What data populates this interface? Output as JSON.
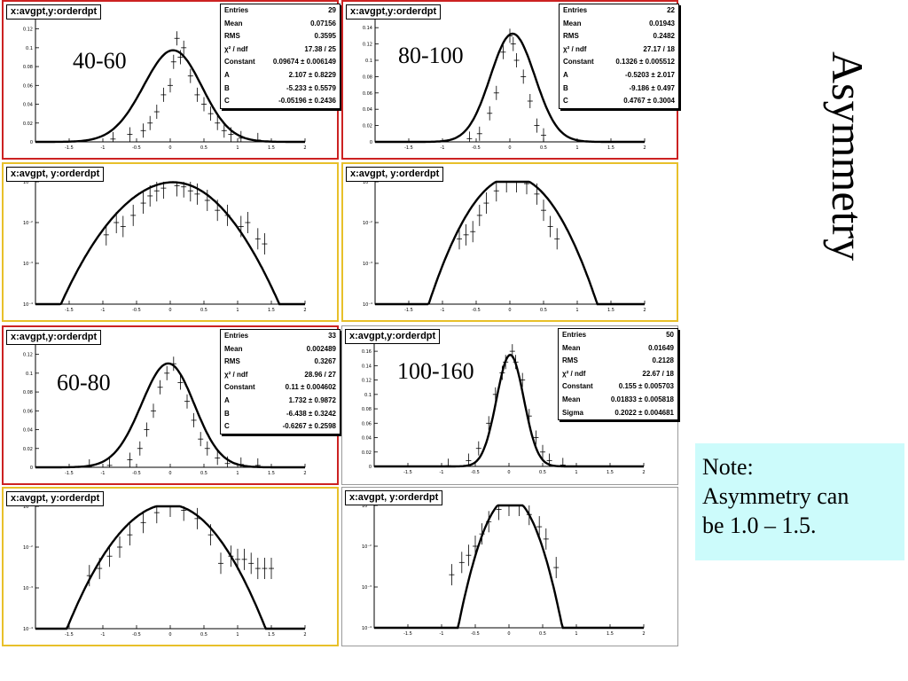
{
  "side_title": "Asymmetry",
  "note": {
    "line1": "Note:",
    "line2": "Asymmetry can",
    "line3": "be 1.0 – 1.5."
  },
  "colors": {
    "red_frame": "#cc2222",
    "yellow_frame": "#e8c02a",
    "note_bg": "#ccfbfb"
  },
  "chart_data": [
    {
      "id": "p1",
      "type": "scatter",
      "histogram_title": "x:avgpt,y:orderdpt",
      "bin_label": "40-60",
      "log_y": false,
      "xlim": [
        -2,
        2
      ],
      "ylim": [
        0,
        0.13
      ],
      "x_ticks": [
        "-1.5",
        "-1",
        "-0.5",
        "0",
        "0.5",
        "1",
        "1.5",
        "2"
      ],
      "y_ticks": [
        "0",
        "0.02",
        "0.04",
        "0.06",
        "0.08",
        "0.1",
        "0.12"
      ],
      "stats": [
        {
          "k": "Entries",
          "v": "29"
        },
        {
          "k": "Mean",
          "v": "0.07156"
        },
        {
          "k": "RMS",
          "v": "0.3595"
        },
        {
          "k": "χ² / ndf",
          "v": "17.38 / 25"
        },
        {
          "k": "Constant",
          "v": "0.09674 ± 0.006149"
        },
        {
          "k": "A",
          "v": "2.107 ± 0.8229"
        },
        {
          "k": "B",
          "v": "-5.233 ± 0.5579"
        },
        {
          "k": "C",
          "v": "-0.05196 ± 0.2436"
        }
      ],
      "fit": {
        "model": "asym",
        "constant": 0.09674,
        "A": 2.107,
        "B": -5.233,
        "C": -0.05196
      },
      "points": [
        [
          -0.85,
          0.003
        ],
        [
          -0.6,
          0.008
        ],
        [
          -0.4,
          0.012
        ],
        [
          -0.3,
          0.02
        ],
        [
          -0.2,
          0.032
        ],
        [
          -0.1,
          0.05
        ],
        [
          0,
          0.06
        ],
        [
          0.05,
          0.085
        ],
        [
          0.1,
          0.11
        ],
        [
          0.15,
          0.09
        ],
        [
          0.2,
          0.1
        ],
        [
          0.3,
          0.07
        ],
        [
          0.4,
          0.05
        ],
        [
          0.5,
          0.04
        ],
        [
          0.6,
          0.03
        ],
        [
          0.7,
          0.02
        ],
        [
          0.8,
          0.012
        ],
        [
          0.9,
          0.008
        ],
        [
          1.05,
          0.004
        ],
        [
          1.3,
          0.002
        ]
      ]
    },
    {
      "id": "p2",
      "type": "scatter",
      "histogram_title": "x:avgpt,y:orderdpt",
      "bin_label": "80-100",
      "log_y": false,
      "xlim": [
        -2,
        2
      ],
      "ylim": [
        0,
        0.15
      ],
      "x_ticks": [
        "-1.5",
        "-1",
        "-0.5",
        "0",
        "0.5",
        "1",
        "1.5",
        "2"
      ],
      "y_ticks": [
        "0",
        "0.02",
        "0.04",
        "0.06",
        "0.08",
        "0.1",
        "0.12",
        "0.14"
      ],
      "stats": [
        {
          "k": "Entries",
          "v": "22"
        },
        {
          "k": "Mean",
          "v": "0.01943"
        },
        {
          "k": "RMS",
          "v": "0.2482"
        },
        {
          "k": "χ² / ndf",
          "v": "27.17 / 18"
        },
        {
          "k": "Constant",
          "v": "0.1326 ± 0.005512"
        },
        {
          "k": "A",
          "v": "-0.5203 ± 2.017"
        },
        {
          "k": "B",
          "v": "-9.186 ± 0.497"
        },
        {
          "k": "C",
          "v": "0.4767 ± 0.3004"
        }
      ],
      "fit": {
        "model": "asym",
        "constant": 0.1326,
        "A": -0.5203,
        "B": -9.186,
        "C": 0.4767
      },
      "points": [
        [
          -0.6,
          0.004
        ],
        [
          -0.45,
          0.01
        ],
        [
          -0.3,
          0.035
        ],
        [
          -0.2,
          0.06
        ],
        [
          -0.1,
          0.11
        ],
        [
          0,
          0.13
        ],
        [
          0.05,
          0.12
        ],
        [
          0.1,
          0.1
        ],
        [
          0.2,
          0.08
        ],
        [
          0.3,
          0.05
        ],
        [
          0.4,
          0.02
        ],
        [
          0.5,
          0.008
        ]
      ]
    },
    {
      "id": "p3",
      "type": "scatter",
      "histogram_title": "x:avgpt, y:orderdpt",
      "log_y": true,
      "xlim": [
        -2,
        2
      ],
      "ylim_log": [
        -4,
        -1
      ],
      "x_ticks": [
        "-1.5",
        "-1",
        "-0.5",
        "0",
        "0.5",
        "1",
        "1.5",
        "2"
      ],
      "y_ticks": [
        "10⁻⁴",
        "10⁻³",
        "10⁻²",
        "10⁻¹"
      ],
      "fit": {
        "model": "asym",
        "constant": 0.09674,
        "A": 2.107,
        "B": -5.233,
        "C": -0.05196
      },
      "points": [
        [
          -0.95,
          0.005
        ],
        [
          -0.8,
          0.01
        ],
        [
          -0.7,
          0.008
        ],
        [
          -0.55,
          0.015
        ],
        [
          -0.4,
          0.03
        ],
        [
          -0.3,
          0.045
        ],
        [
          -0.2,
          0.06
        ],
        [
          -0.1,
          0.07
        ],
        [
          0.1,
          0.08
        ],
        [
          0.2,
          0.075
        ],
        [
          0.3,
          0.06
        ],
        [
          0.4,
          0.05
        ],
        [
          0.55,
          0.035
        ],
        [
          0.7,
          0.02
        ],
        [
          0.85,
          0.015
        ],
        [
          1.05,
          0.008
        ],
        [
          1.15,
          0.01
        ],
        [
          1.3,
          0.004
        ],
        [
          1.4,
          0.003
        ]
      ]
    },
    {
      "id": "p4",
      "type": "scatter",
      "histogram_title": "x:avgpt, y:orderdpt",
      "log_y": true,
      "xlim": [
        -2,
        2
      ],
      "ylim_log": [
        -4,
        -1
      ],
      "x_ticks": [
        "-1.5",
        "-1",
        "-0.5",
        "0",
        "0.5",
        "1",
        "1.5",
        "2"
      ],
      "y_ticks": [
        "10⁻⁴",
        "10⁻³",
        "10⁻²",
        "10⁻¹"
      ],
      "fit": {
        "model": "asym",
        "constant": 0.1326,
        "A": -0.5203,
        "B": -9.186,
        "C": 0.4767
      },
      "points": [
        [
          -0.75,
          0.004
        ],
        [
          -0.65,
          0.005
        ],
        [
          -0.55,
          0.006
        ],
        [
          -0.45,
          0.015
        ],
        [
          -0.35,
          0.03
        ],
        [
          -0.2,
          0.06
        ],
        [
          -0.05,
          0.1
        ],
        [
          0.1,
          0.12
        ],
        [
          0.25,
          0.09
        ],
        [
          0.4,
          0.05
        ],
        [
          0.5,
          0.02
        ],
        [
          0.6,
          0.008
        ],
        [
          0.7,
          0.004
        ]
      ]
    },
    {
      "id": "p5",
      "type": "scatter",
      "histogram_title": "x:avgpt,y:orderdpt",
      "bin_label": "60-80",
      "log_y": false,
      "xlim": [
        -2,
        2
      ],
      "ylim": [
        0,
        0.13
      ],
      "x_ticks": [
        "-1.5",
        "-1",
        "-0.5",
        "0",
        "0.5",
        "1",
        "1.5",
        "2"
      ],
      "y_ticks": [
        "0",
        "0.02",
        "0.04",
        "0.06",
        "0.08",
        "0.1",
        "0.12"
      ],
      "stats": [
        {
          "k": "Entries",
          "v": "33"
        },
        {
          "k": "Mean",
          "v": "0.002489"
        },
        {
          "k": "RMS",
          "v": "0.3267"
        },
        {
          "k": "χ² / ndf",
          "v": "28.96 / 27"
        },
        {
          "k": "Constant",
          "v": "0.11 ± 0.004602"
        },
        {
          "k": "A",
          "v": "1.732 ± 0.9872"
        },
        {
          "k": "B",
          "v": "-6.438 ± 0.3242"
        },
        {
          "k": "C",
          "v": "-0.6267 ± 0.2598"
        }
      ],
      "fit": {
        "model": "asym",
        "constant": 0.11,
        "A": 1.732,
        "B": -6.438,
        "C": -0.6267
      },
      "points": [
        [
          -1.2,
          0.001
        ],
        [
          -0.9,
          0.002
        ],
        [
          -0.6,
          0.008
        ],
        [
          -0.45,
          0.02
        ],
        [
          -0.35,
          0.04
        ],
        [
          -0.25,
          0.06
        ],
        [
          -0.15,
          0.085
        ],
        [
          -0.05,
          0.1
        ],
        [
          0.05,
          0.11
        ],
        [
          0.15,
          0.09
        ],
        [
          0.25,
          0.07
        ],
        [
          0.35,
          0.05
        ],
        [
          0.45,
          0.03
        ],
        [
          0.55,
          0.02
        ],
        [
          0.7,
          0.01
        ],
        [
          0.85,
          0.004
        ],
        [
          1.05,
          0.003
        ],
        [
          1.3,
          0.002
        ]
      ]
    },
    {
      "id": "p6",
      "type": "scatter",
      "histogram_title": "x:avgpt,y:orderdpt",
      "bin_label": "100-160",
      "log_y": false,
      "xlim": [
        -2,
        2
      ],
      "ylim": [
        0,
        0.17
      ],
      "x_ticks": [
        "-1.5",
        "-1",
        "-0.5",
        "0",
        "0.5",
        "1",
        "1.5",
        "2"
      ],
      "y_ticks": [
        "0",
        "0.02",
        "0.04",
        "0.06",
        "0.08",
        "0.1",
        "0.12",
        "0.14",
        "0.16"
      ],
      "stats": [
        {
          "k": "Entries",
          "v": "50"
        },
        {
          "k": "Mean",
          "v": "0.01649"
        },
        {
          "k": "RMS",
          "v": "0.2128"
        },
        {
          "k": "χ² / ndf",
          "v": "22.67 / 18"
        },
        {
          "k": "Constant",
          "v": "0.155 ± 0.005703"
        },
        {
          "k": "Mean",
          "v": "0.01833 ± 0.005818"
        },
        {
          "k": "Sigma",
          "v": "0.2022 ± 0.004681"
        }
      ],
      "fit": {
        "model": "gaus",
        "constant": 0.155,
        "mean": 0.01833,
        "sigma": 0.2022
      },
      "points": [
        [
          -0.9,
          0.001
        ],
        [
          -0.6,
          0.008
        ],
        [
          -0.45,
          0.025
        ],
        [
          -0.3,
          0.06
        ],
        [
          -0.2,
          0.1
        ],
        [
          -0.1,
          0.13
        ],
        [
          -0.05,
          0.145
        ],
        [
          0.05,
          0.16
        ],
        [
          0.1,
          0.145
        ],
        [
          0.2,
          0.12
        ],
        [
          0.3,
          0.07
        ],
        [
          0.4,
          0.04
        ],
        [
          0.5,
          0.02
        ],
        [
          0.6,
          0.008
        ],
        [
          0.8,
          0.002
        ]
      ]
    },
    {
      "id": "p7",
      "type": "scatter",
      "histogram_title": "x:avgpt, y:orderdpt",
      "log_y": true,
      "xlim": [
        -2,
        2
      ],
      "ylim_log": [
        -4,
        -1
      ],
      "x_ticks": [
        "-1.5",
        "-1",
        "-0.5",
        "0",
        "0.5",
        "1",
        "1.5",
        "2"
      ],
      "y_ticks": [
        "10⁻⁴",
        "10⁻³",
        "10⁻²",
        "10⁻¹"
      ],
      "fit": {
        "model": "asym",
        "constant": 0.11,
        "A": 1.732,
        "B": -6.438,
        "C": -0.6267
      },
      "points": [
        [
          -1.2,
          0.002
        ],
        [
          -1.05,
          0.003
        ],
        [
          -0.9,
          0.006
        ],
        [
          -0.75,
          0.01
        ],
        [
          -0.6,
          0.02
        ],
        [
          -0.4,
          0.04
        ],
        [
          -0.2,
          0.07
        ],
        [
          0,
          0.1
        ],
        [
          0.2,
          0.08
        ],
        [
          0.4,
          0.05
        ],
        [
          0.6,
          0.02
        ],
        [
          0.75,
          0.004
        ],
        [
          0.9,
          0.006
        ],
        [
          1.0,
          0.005
        ],
        [
          1.1,
          0.005
        ],
        [
          1.2,
          0.004
        ],
        [
          1.3,
          0.003
        ],
        [
          1.4,
          0.003
        ],
        [
          1.5,
          0.003
        ]
      ]
    },
    {
      "id": "p8",
      "type": "scatter",
      "histogram_title": "x:avgpt, y:orderdpt",
      "log_y": true,
      "xlim": [
        -2,
        2
      ],
      "ylim_log": [
        -4,
        -1
      ],
      "x_ticks": [
        "-1.5",
        "-1",
        "-0.5",
        "0",
        "0.5",
        "1",
        "1.5",
        "2"
      ],
      "y_ticks": [
        "10⁻⁴",
        "10⁻³",
        "10⁻²",
        "10⁻¹"
      ],
      "fit": {
        "model": "gaus",
        "constant": 0.155,
        "mean": 0.01833,
        "sigma": 0.2022
      },
      "points": [
        [
          -0.85,
          0.002
        ],
        [
          -0.7,
          0.004
        ],
        [
          -0.6,
          0.006
        ],
        [
          -0.5,
          0.01
        ],
        [
          -0.4,
          0.02
        ],
        [
          -0.3,
          0.04
        ],
        [
          -0.15,
          0.08
        ],
        [
          0,
          0.12
        ],
        [
          0.15,
          0.1
        ],
        [
          0.3,
          0.06
        ],
        [
          0.45,
          0.03
        ],
        [
          0.55,
          0.015
        ],
        [
          0.7,
          0.003
        ]
      ]
    }
  ]
}
